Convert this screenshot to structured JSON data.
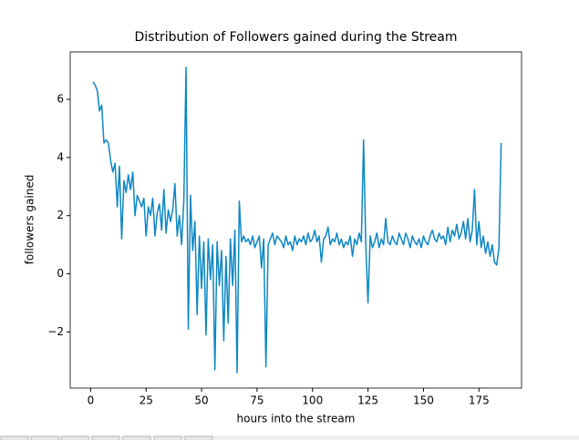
{
  "chart_data": {
    "type": "line",
    "title": "Distribution of Followers gained during the Stream",
    "xlabel": "hours into the stream",
    "ylabel": "followers gained",
    "color": "#0c87c4",
    "xlim": [
      -9.2,
      194.2
    ],
    "ylim": [
      -3.93,
      7.63
    ],
    "xticks": [
      0,
      25,
      50,
      75,
      100,
      125,
      150,
      175
    ],
    "yticks": [
      {
        "value": -2,
        "label": "−2"
      },
      0,
      2,
      4,
      6
    ],
    "grid": false,
    "x": [
      1,
      2,
      3,
      4,
      5,
      6,
      7,
      8,
      9,
      10,
      11,
      12,
      13,
      14,
      15,
      16,
      17,
      18,
      19,
      20,
      21,
      22,
      23,
      24,
      25,
      26,
      27,
      28,
      29,
      30,
      31,
      32,
      33,
      34,
      35,
      36,
      37,
      38,
      39,
      40,
      41,
      42,
      43,
      44,
      45,
      46,
      47,
      48,
      49,
      50,
      51,
      52,
      53,
      54,
      55,
      56,
      57,
      58,
      59,
      60,
      61,
      62,
      63,
      64,
      65,
      66,
      67,
      68,
      69,
      70,
      71,
      72,
      73,
      74,
      75,
      76,
      77,
      78,
      79,
      80,
      81,
      82,
      83,
      84,
      85,
      86,
      87,
      88,
      89,
      90,
      91,
      92,
      93,
      94,
      95,
      96,
      97,
      98,
      99,
      100,
      101,
      102,
      103,
      104,
      105,
      106,
      107,
      108,
      109,
      110,
      111,
      112,
      113,
      114,
      115,
      116,
      117,
      118,
      119,
      120,
      121,
      122,
      123,
      124,
      125,
      126,
      127,
      128,
      129,
      130,
      131,
      132,
      133,
      134,
      135,
      136,
      137,
      138,
      139,
      140,
      141,
      142,
      143,
      144,
      145,
      146,
      147,
      148,
      149,
      150,
      151,
      152,
      153,
      154,
      155,
      156,
      157,
      158,
      159,
      160,
      161,
      162,
      163,
      164,
      165,
      166,
      167,
      168,
      169,
      170,
      171,
      172,
      173,
      174,
      175,
      176,
      177,
      178,
      179,
      180,
      181,
      182,
      183,
      184,
      185
    ],
    "values": [
      6.6,
      6.5,
      6.3,
      5.6,
      5.8,
      4.5,
      4.6,
      4.5,
      3.9,
      3.5,
      3.8,
      2.3,
      3.7,
      1.2,
      3.2,
      2.8,
      3.4,
      2.9,
      3.5,
      2.0,
      2.7,
      2.5,
      2.3,
      2.6,
      1.3,
      2.3,
      2.0,
      2.6,
      1.3,
      2.1,
      2.4,
      1.5,
      2.9,
      1.4,
      2.2,
      1.8,
      2.2,
      3.1,
      1.3,
      2.0,
      1.0,
      2.5,
      7.1,
      -1.9,
      2.7,
      0.8,
      1.8,
      -1.4,
      1.3,
      -0.5,
      1.1,
      -2.1,
      1.2,
      -0.2,
      1.0,
      -3.3,
      1.1,
      -0.4,
      0.8,
      -2.3,
      0.6,
      -1.7,
      1.2,
      -0.4,
      1.5,
      -3.4,
      2.5,
      1.1,
      1.3,
      1.1,
      1.2,
      1.0,
      1.3,
      0.9,
      1.1,
      1.3,
      0.2,
      1.2,
      -3.2,
      1.0,
      1.2,
      1.4,
      1.0,
      1.3,
      1.2,
      1.1,
      0.9,
      1.3,
      1.0,
      1.1,
      0.8,
      1.3,
      1.0,
      1.2,
      1.1,
      1.3,
      1.0,
      1.4,
      1.1,
      1.2,
      1.5,
      1.1,
      1.3,
      0.4,
      1.2,
      1.3,
      1.6,
      1.0,
      1.2,
      1.1,
      1.4,
      1.0,
      1.2,
      0.9,
      1.1,
      1.0,
      1.3,
      0.6,
      1.2,
      1.0,
      1.4,
      1.1,
      4.6,
      1.0,
      -1.0,
      1.3,
      0.9,
      1.1,
      1.4,
      0.9,
      1.2,
      1.0,
      1.9,
      1.1,
      1.0,
      1.3,
      1.1,
      1.0,
      1.4,
      1.2,
      1.0,
      1.4,
      1.2,
      0.9,
      1.3,
      1.1,
      1.0,
      1.2,
      0.9,
      1.3,
      1.1,
      1.0,
      1.3,
      1.5,
      1.2,
      1.1,
      1.4,
      1.2,
      1.3,
      1.0,
      1.6,
      1.1,
      1.5,
      1.3,
      1.7,
      1.2,
      1.4,
      1.8,
      1.2,
      1.9,
      1.1,
      1.5,
      2.9,
      1.0,
      1.8,
      0.9,
      1.3,
      0.7,
      1.1,
      0.6,
      1.0,
      0.4,
      0.3,
      0.9,
      4.5
    ]
  }
}
